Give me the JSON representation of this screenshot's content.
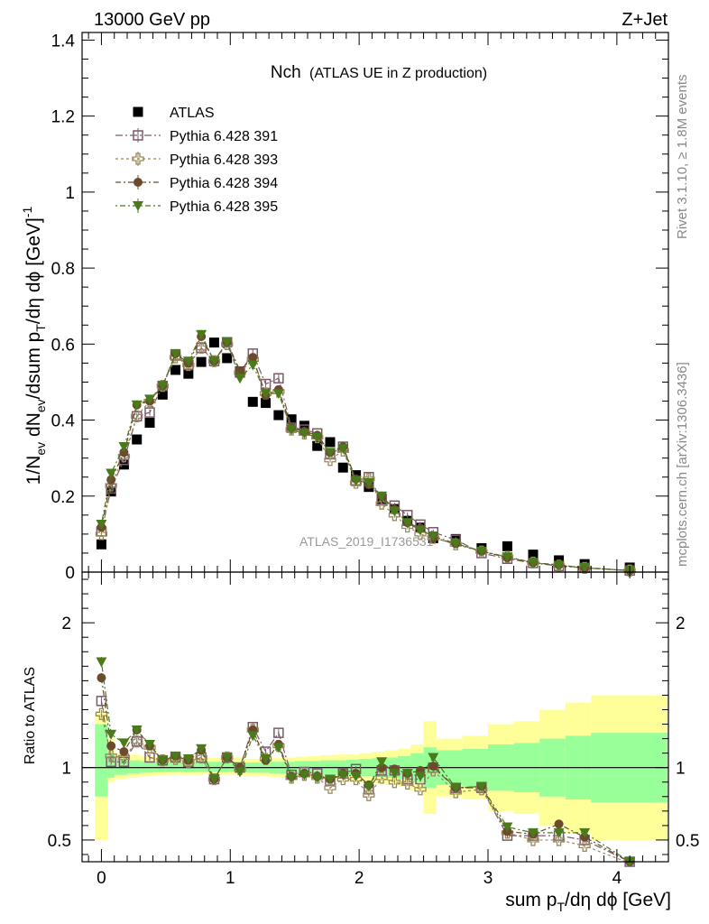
{
  "header": {
    "left": "13000 GeV pp",
    "right": "Z+Jet"
  },
  "side_labels": {
    "rivet": "Rivet 3.1.10, ≥ 1.8M events",
    "mcplots": "mcplots.cern.ch [arXiv:1306.3436]"
  },
  "watermark": "ATLAS_2019_I1736531",
  "colors": {
    "atlas": "#000000",
    "p391": "#7a5a6a",
    "p393": "#9a8a5a",
    "p394": "#6b4a2e",
    "p395": "#4a7a1a",
    "band_outer": "#ffff99",
    "band_inner": "#99ff99"
  },
  "chart_data": [
    {
      "type": "scatter",
      "title": "Nch",
      "subtitle": "(ATLAS UE in Z production)",
      "ylabel": "1/N_ev dN_ev/dsum p_T/dη dϕ [GeV]^-1",
      "ylim": [
        0,
        1.42
      ],
      "xlim": [
        -0.15,
        4.4
      ],
      "yticks": [
        "0",
        "0.2",
        "0.4",
        "0.6",
        "0.8",
        "1",
        "1.2",
        "1.4"
      ],
      "legend_position": "top-left",
      "x": [
        0,
        0.075,
        0.175,
        0.275,
        0.375,
        0.475,
        0.575,
        0.675,
        0.775,
        0.875,
        0.975,
        1.075,
        1.175,
        1.275,
        1.375,
        1.475,
        1.575,
        1.675,
        1.775,
        1.875,
        1.975,
        2.075,
        2.175,
        2.275,
        2.375,
        2.475,
        2.575,
        2.75,
        2.95,
        3.15,
        3.35,
        3.55,
        3.75,
        4.1
      ],
      "series": [
        {
          "name": "ATLAS",
          "marker": "filled-square",
          "values": [
            0.073,
            0.212,
            0.283,
            0.349,
            0.393,
            0.467,
            0.532,
            0.522,
            0.553,
            0.604,
            0.563,
            0.528,
            0.448,
            0.445,
            0.413,
            0.402,
            0.385,
            0.332,
            0.342,
            0.275,
            0.255,
            0.224,
            0.193,
            0.166,
            0.135,
            0.117,
            0.089,
            0.087,
            0.063,
            0.068,
            0.046,
            0.031,
            0.021,
            0.012
          ]
        },
        {
          "name": "Pythia 6.428 391",
          "marker": "open-square",
          "values": [
            0.107,
            0.22,
            0.295,
            0.41,
            0.42,
            0.49,
            0.57,
            0.545,
            0.59,
            0.555,
            0.605,
            0.525,
            0.575,
            0.495,
            0.51,
            0.38,
            0.375,
            0.365,
            0.31,
            0.33,
            0.24,
            0.25,
            0.19,
            0.175,
            0.15,
            0.125,
            0.105,
            0.085,
            0.05,
            0.035,
            0.024,
            0.016,
            0.011,
            0.004
          ]
        },
        {
          "name": "Pythia 6.428 393",
          "marker": "open-cross",
          "values": [
            0.1,
            0.228,
            0.305,
            0.41,
            0.45,
            0.49,
            0.565,
            0.545,
            0.59,
            0.555,
            0.6,
            0.525,
            0.56,
            0.47,
            0.475,
            0.375,
            0.365,
            0.355,
            0.295,
            0.32,
            0.235,
            0.245,
            0.18,
            0.15,
            0.12,
            0.1,
            0.09,
            0.073,
            0.054,
            0.04,
            0.025,
            0.017,
            0.011,
            0.004
          ]
        },
        {
          "name": "Pythia 6.428 394",
          "marker": "filled-circle",
          "values": [
            0.118,
            0.243,
            0.315,
            0.44,
            0.45,
            0.49,
            0.575,
            0.55,
            0.62,
            0.555,
            0.605,
            0.53,
            0.565,
            0.465,
            0.48,
            0.38,
            0.37,
            0.36,
            0.315,
            0.33,
            0.245,
            0.23,
            0.2,
            0.165,
            0.13,
            0.115,
            0.09,
            0.075,
            0.055,
            0.038,
            0.025,
            0.019,
            0.011,
            0.004
          ]
        },
        {
          "name": "Pythia 6.428 395",
          "marker": "filled-triangle-down",
          "values": [
            0.126,
            0.26,
            0.33,
            0.44,
            0.455,
            0.49,
            0.575,
            0.555,
            0.625,
            0.555,
            0.605,
            0.51,
            0.545,
            0.47,
            0.47,
            0.375,
            0.365,
            0.355,
            0.315,
            0.325,
            0.24,
            0.235,
            0.2,
            0.16,
            0.13,
            0.11,
            0.095,
            0.075,
            0.055,
            0.04,
            0.025,
            0.017,
            0.012,
            0.004
          ]
        }
      ]
    },
    {
      "type": "scatter",
      "ylabel": "Ratio to ATLAS",
      "xlabel": "sum p_T/dη dϕ [GeV]",
      "ylim": [
        0.35,
        2.35
      ],
      "xlim": [
        -0.15,
        4.4
      ],
      "yticks": [
        "0.5",
        "1",
        "2"
      ],
      "xticks": [
        "0",
        "1",
        "2",
        "3",
        "4"
      ],
      "reference_line": 1,
      "band_edges": [
        -0.05,
        0.05,
        0.1,
        0.2,
        0.3,
        0.4,
        0.5,
        0.6,
        0.7,
        0.8,
        0.9,
        1.0,
        1.1,
        1.2,
        1.3,
        1.4,
        1.5,
        1.6,
        1.7,
        1.8,
        1.9,
        2.0,
        2.1,
        2.2,
        2.3,
        2.4,
        2.5,
        2.6,
        2.8,
        3.0,
        3.2,
        3.4,
        3.6,
        3.8,
        4.4
      ],
      "band_outer": [
        [
          0.5,
          1.38
        ],
        [
          0.9,
          1.2
        ],
        [
          0.92,
          1.1
        ],
        [
          0.93,
          1.09
        ],
        [
          0.94,
          1.08
        ],
        [
          0.945,
          1.075
        ],
        [
          0.95,
          1.07
        ],
        [
          0.95,
          1.07
        ],
        [
          0.95,
          1.07
        ],
        [
          0.955,
          1.07
        ],
        [
          0.95,
          1.07
        ],
        [
          0.95,
          1.07
        ],
        [
          0.94,
          1.06
        ],
        [
          0.94,
          1.06
        ],
        [
          0.935,
          1.065
        ],
        [
          0.93,
          1.07
        ],
        [
          0.93,
          1.075
        ],
        [
          0.925,
          1.08
        ],
        [
          0.92,
          1.085
        ],
        [
          0.915,
          1.09
        ],
        [
          0.91,
          1.09
        ],
        [
          0.9,
          1.1
        ],
        [
          0.89,
          1.11
        ],
        [
          0.88,
          1.12
        ],
        [
          0.87,
          1.13
        ],
        [
          0.84,
          1.16
        ],
        [
          0.68,
          1.32
        ],
        [
          0.8,
          1.2
        ],
        [
          0.78,
          1.22
        ],
        [
          0.7,
          1.3
        ],
        [
          0.68,
          1.32
        ],
        [
          0.6,
          1.4
        ],
        [
          0.55,
          1.45
        ],
        [
          0.5,
          1.5
        ]
      ],
      "band_inner": [
        [
          0.8,
          1.3
        ],
        [
          0.93,
          1.1
        ],
        [
          0.95,
          1.06
        ],
        [
          0.96,
          1.05
        ],
        [
          0.965,
          1.045
        ],
        [
          0.97,
          1.04
        ],
        [
          0.97,
          1.04
        ],
        [
          0.97,
          1.04
        ],
        [
          0.97,
          1.04
        ],
        [
          0.97,
          1.04
        ],
        [
          0.97,
          1.04
        ],
        [
          0.97,
          1.04
        ],
        [
          0.965,
          1.035
        ],
        [
          0.965,
          1.035
        ],
        [
          0.96,
          1.04
        ],
        [
          0.96,
          1.04
        ],
        [
          0.955,
          1.045
        ],
        [
          0.955,
          1.045
        ],
        [
          0.95,
          1.05
        ],
        [
          0.95,
          1.05
        ],
        [
          0.945,
          1.055
        ],
        [
          0.94,
          1.06
        ],
        [
          0.935,
          1.065
        ],
        [
          0.93,
          1.07
        ],
        [
          0.92,
          1.08
        ],
        [
          0.9,
          1.1
        ],
        [
          0.86,
          1.14
        ],
        [
          0.88,
          1.12
        ],
        [
          0.87,
          1.13
        ],
        [
          0.84,
          1.16
        ],
        [
          0.83,
          1.17
        ],
        [
          0.8,
          1.2
        ],
        [
          0.78,
          1.22
        ],
        [
          0.76,
          1.24
        ]
      ],
      "x": [
        0,
        0.075,
        0.175,
        0.275,
        0.375,
        0.475,
        0.575,
        0.675,
        0.775,
        0.875,
        0.975,
        1.075,
        1.175,
        1.275,
        1.375,
        1.475,
        1.575,
        1.675,
        1.775,
        1.875,
        1.975,
        2.075,
        2.175,
        2.275,
        2.375,
        2.475,
        2.575,
        2.75,
        2.95,
        3.15,
        3.35,
        3.55,
        3.75,
        4.1
      ],
      "series": [
        {
          "name": "Pythia 6.428 391",
          "marker": "open-square",
          "values": [
            1.46,
            1.04,
            1.04,
            1.18,
            1.07,
            1.05,
            1.07,
            1.04,
            1.07,
            0.92,
            1.07,
            1.0,
            1.28,
            1.11,
            1.24,
            0.95,
            0.97,
            0.96,
            0.91,
            0.96,
            0.99,
            0.85,
            0.98,
            0.98,
            0.92,
            0.92,
            1.0,
            0.86,
            0.86,
            0.53,
            0.53,
            0.53,
            0.5,
            0.35
          ]
        },
        {
          "name": "Pythia 6.428 393",
          "marker": "open-cross",
          "values": [
            1.37,
            1.08,
            1.07,
            1.18,
            1.14,
            1.05,
            1.06,
            1.04,
            1.07,
            0.92,
            1.07,
            0.99,
            1.26,
            1.06,
            1.15,
            0.93,
            0.95,
            0.93,
            0.86,
            0.92,
            0.92,
            0.81,
            0.93,
            0.9,
            0.89,
            0.85,
            0.98,
            0.83,
            0.85,
            0.55,
            0.5,
            0.5,
            0.46,
            0.34
          ]
        },
        {
          "name": "Pythia 6.428 394",
          "marker": "filled-circle",
          "values": [
            1.62,
            1.15,
            1.11,
            1.26,
            1.15,
            1.05,
            1.08,
            1.05,
            1.12,
            0.92,
            1.07,
            1.0,
            1.26,
            1.05,
            1.16,
            0.94,
            0.96,
            0.94,
            0.92,
            0.96,
            0.96,
            0.88,
            1.0,
            0.99,
            0.96,
            0.98,
            1.01,
            0.86,
            0.87,
            0.56,
            0.54,
            0.61,
            0.52,
            0.35
          ]
        },
        {
          "name": "Pythia 6.428 395",
          "marker": "filled-triangle-down",
          "values": [
            1.73,
            1.23,
            1.17,
            1.26,
            1.16,
            1.05,
            1.08,
            1.06,
            1.13,
            0.92,
            1.07,
            0.97,
            1.22,
            1.06,
            1.14,
            0.93,
            0.95,
            0.93,
            0.92,
            0.95,
            0.94,
            0.87,
            1.04,
            0.96,
            0.96,
            0.94,
            1.07,
            0.86,
            0.87,
            0.59,
            0.55,
            0.55,
            0.55,
            0.35
          ]
        }
      ]
    }
  ]
}
